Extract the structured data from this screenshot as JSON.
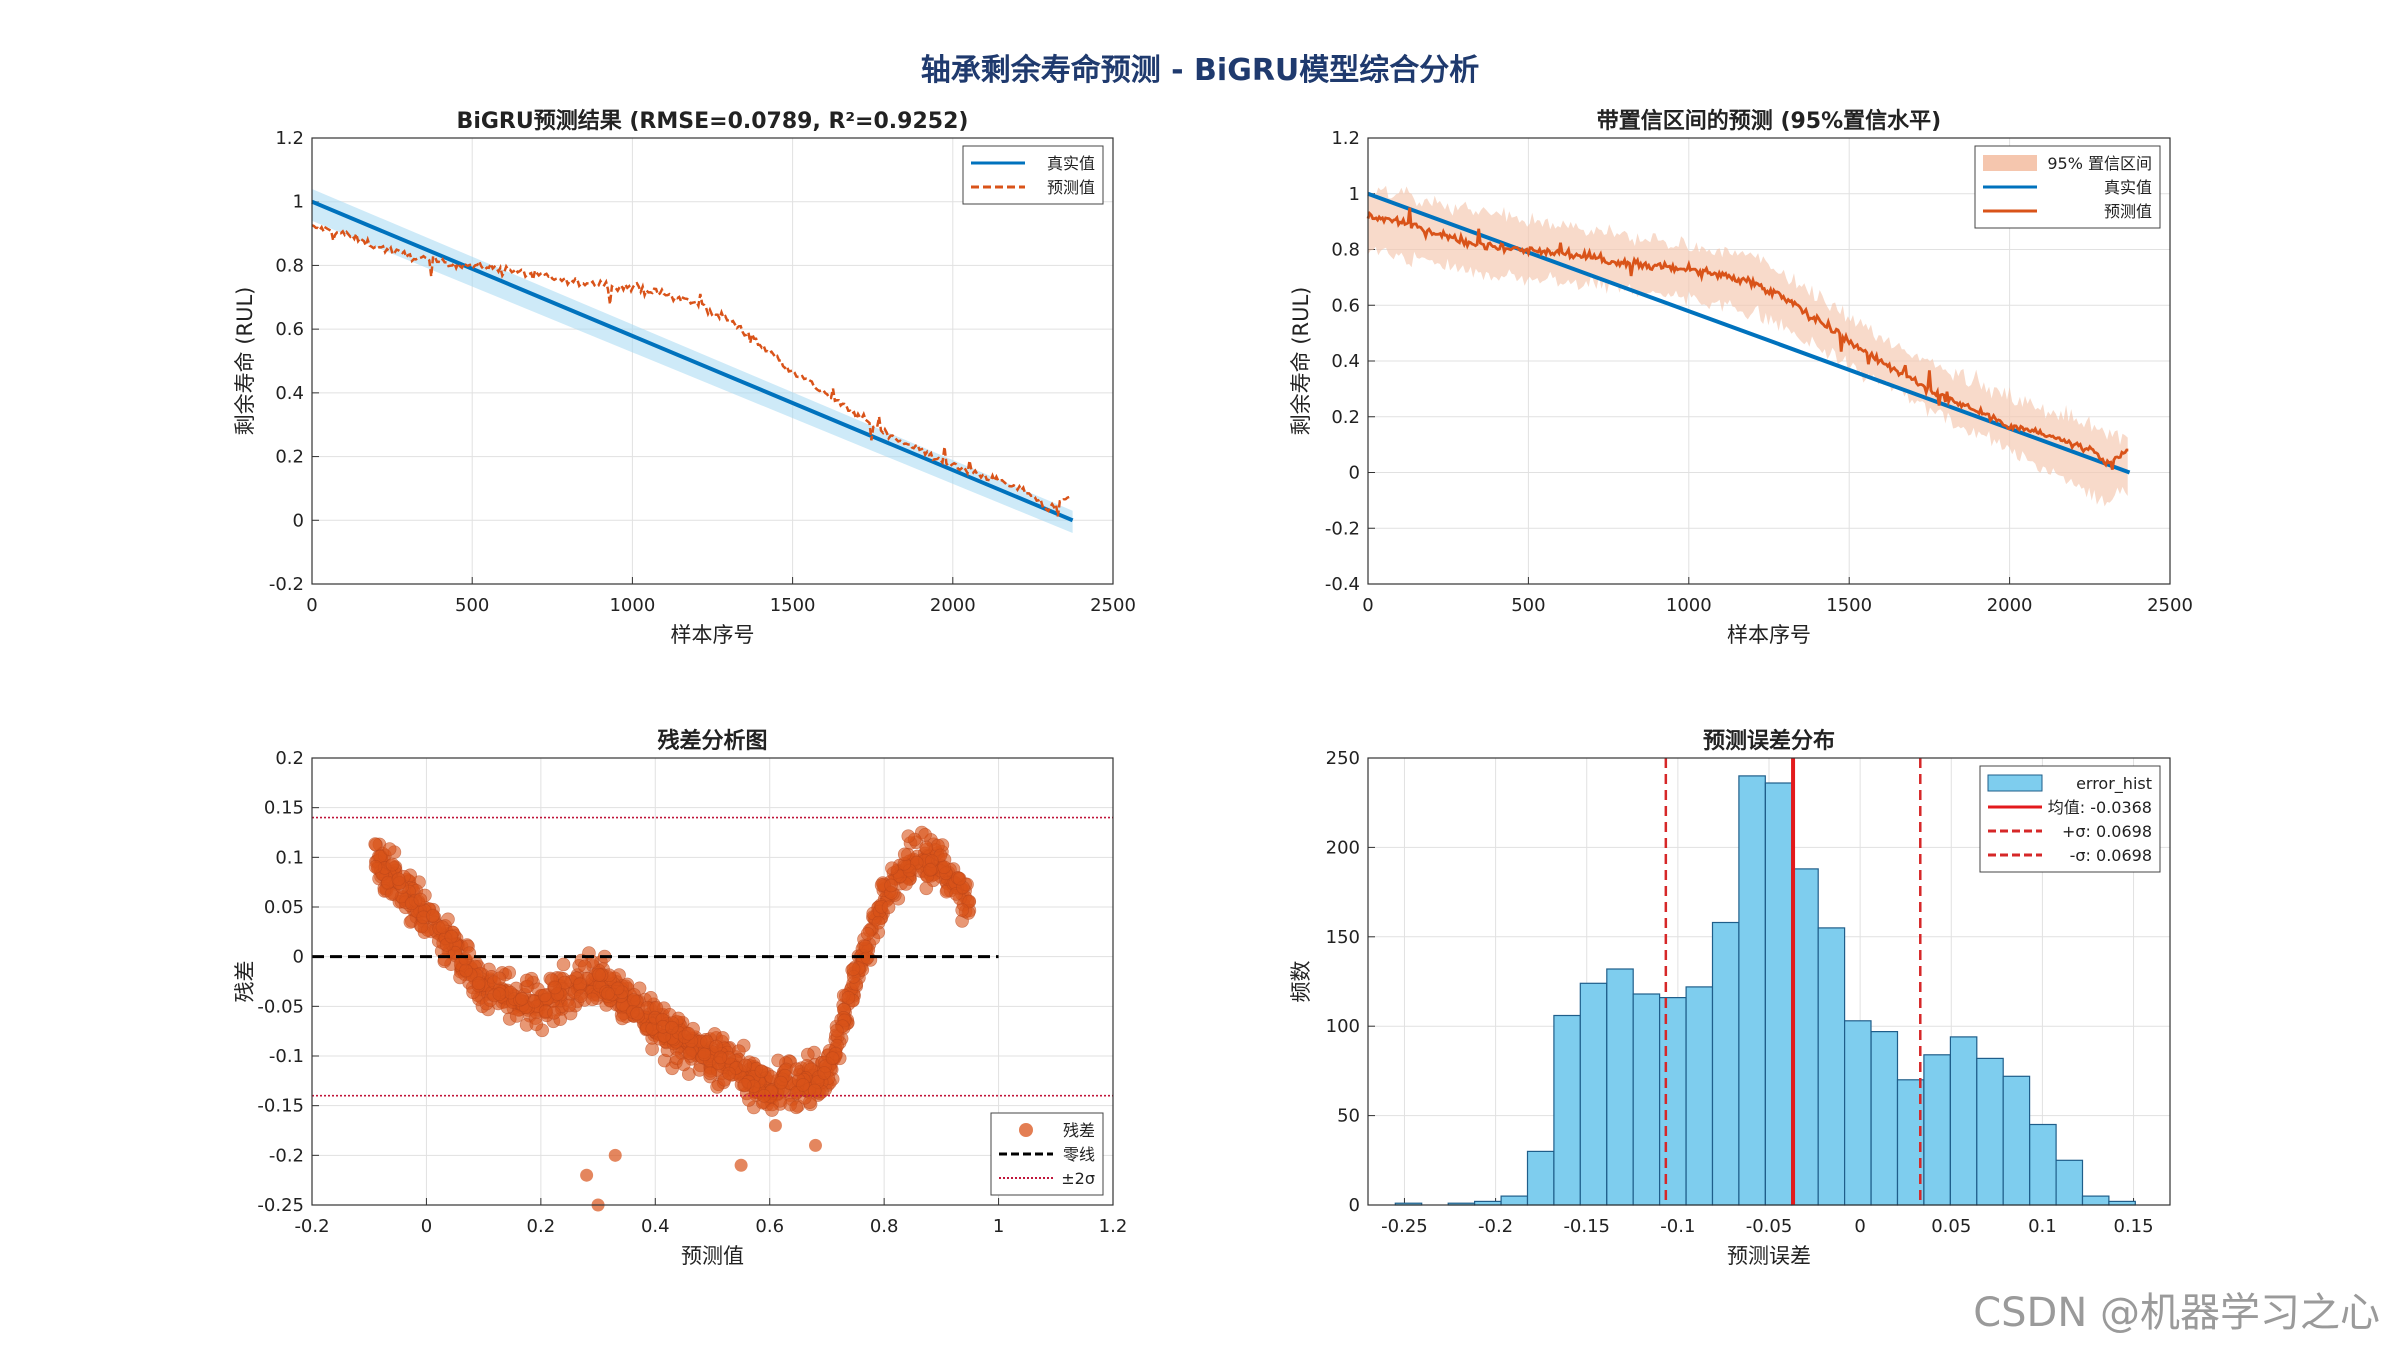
{
  "figure": {
    "title": "轴承剩余寿命预测 - BiGRU模型综合分析",
    "watermark": "CSDN @机器学习之心"
  },
  "colors": {
    "blue": "#0072BD",
    "orange": "#D95319",
    "band_blue": "#A6D8F2",
    "band_orange": "#F5C6AE",
    "hist_fill": "#7ECDEE",
    "hist_edge": "#1F5E8A",
    "mean_line": "#E31A1C",
    "sigma_line": "#D62728",
    "title_color": "#1F3A6E"
  },
  "chart_data": [
    {
      "id": "p1",
      "type": "line",
      "title": "BiGRU预测结果 (RMSE=0.0789, R²=0.9252)",
      "xlabel": "样本序号",
      "ylabel": "剩余寿命 (RUL)",
      "xlim": [
        0,
        2500
      ],
      "ylim": [
        -0.2,
        1.2
      ],
      "xticks": [
        0,
        500,
        1000,
        1500,
        2000,
        2500
      ],
      "yticks": [
        -0.2,
        0,
        0.2,
        0.4,
        0.6,
        0.8,
        1,
        1.2
      ],
      "ytick_labels": [
        "-0.2",
        "0",
        "0.2",
        "0.4",
        "0.6",
        "0.8",
        "1",
        "1.2"
      ],
      "grid": true,
      "legend": "top-right",
      "series": [
        {
          "name": "真实值",
          "style": "solid",
          "x": [
            0,
            2374
          ],
          "y": [
            1.0,
            0.0
          ]
        },
        {
          "name": "预测值",
          "style": "dashed",
          "x": [
            0,
            100,
            200,
            300,
            400,
            500,
            600,
            700,
            800,
            900,
            1000,
            1100,
            1200,
            1300,
            1400,
            1500,
            1600,
            1700,
            1800,
            1900,
            2000,
            2100,
            2200,
            2250,
            2300,
            2374
          ],
          "y": [
            0.92,
            0.9,
            0.86,
            0.83,
            0.81,
            0.8,
            0.79,
            0.77,
            0.75,
            0.74,
            0.73,
            0.71,
            0.68,
            0.63,
            0.55,
            0.47,
            0.4,
            0.33,
            0.27,
            0.22,
            0.17,
            0.14,
            0.1,
            0.08,
            0.03,
            0.08
          ]
        }
      ],
      "band": {
        "x": [
          0,
          2374
        ],
        "lower": [
          0.94,
          -0.04
        ],
        "upper": [
          1.04,
          0.03
        ]
      }
    },
    {
      "id": "p2",
      "type": "line",
      "title": "带置信区间的预测 (95%置信水平)",
      "xlabel": "样本序号",
      "ylabel": "剩余寿命 (RUL)",
      "xlim": [
        0,
        2500
      ],
      "ylim": [
        -0.4,
        1.2
      ],
      "xticks": [
        0,
        500,
        1000,
        1500,
        2000,
        2500
      ],
      "yticks": [
        -0.4,
        -0.2,
        0,
        0.2,
        0.4,
        0.6,
        0.8,
        1,
        1.2
      ],
      "ytick_labels": [
        "-0.4",
        "-0.2",
        "0",
        "0.2",
        "0.4",
        "0.6",
        "0.8",
        "1",
        "1.2"
      ],
      "grid": true,
      "legend": "top-right",
      "series": [
        {
          "name": "真实值",
          "style": "solid",
          "x": [
            0,
            2374
          ],
          "y": [
            1.0,
            0.0
          ]
        },
        {
          "name": "预测值",
          "style": "solid",
          "x": [
            0,
            100,
            200,
            300,
            400,
            500,
            600,
            700,
            800,
            900,
            1000,
            1100,
            1200,
            1300,
            1400,
            1500,
            1600,
            1700,
            1800,
            1900,
            2000,
            2100,
            2200,
            2250,
            2300,
            2374
          ],
          "y": [
            0.92,
            0.9,
            0.86,
            0.83,
            0.81,
            0.8,
            0.79,
            0.77,
            0.75,
            0.74,
            0.73,
            0.71,
            0.68,
            0.63,
            0.55,
            0.47,
            0.4,
            0.33,
            0.27,
            0.22,
            0.17,
            0.14,
            0.1,
            0.08,
            0.03,
            0.08
          ]
        }
      ],
      "band": {
        "name": "95% 置信区间",
        "x": [
          0,
          400,
          800,
          1200,
          1600,
          2000,
          2300,
          2374
        ],
        "lower": [
          0.8,
          0.7,
          0.66,
          0.58,
          0.32,
          0.08,
          -0.1,
          -0.05
        ],
        "upper": [
          1.02,
          0.92,
          0.85,
          0.78,
          0.48,
          0.27,
          0.15,
          0.12
        ]
      }
    },
    {
      "id": "p3",
      "type": "scatter",
      "title": "残差分析图",
      "xlabel": "预测值",
      "ylabel": "残差",
      "xlim": [
        -0.2,
        1.2
      ],
      "ylim": [
        -0.25,
        0.2
      ],
      "xticks": [
        -0.2,
        0,
        0.2,
        0.4,
        0.6,
        0.8,
        1,
        1.2
      ],
      "xtick_labels": [
        "-0.2",
        "0",
        "0.2",
        "0.4",
        "0.6",
        "0.8",
        "1",
        "1.2"
      ],
      "yticks": [
        -0.25,
        -0.2,
        -0.15,
        -0.1,
        -0.05,
        0,
        0.05,
        0.1,
        0.15,
        0.2
      ],
      "ytick_labels": [
        "-0.25",
        "-0.2",
        "-0.15",
        "-0.1",
        "-0.05",
        "0",
        "0.05",
        "0.1",
        "0.15",
        "0.2"
      ],
      "grid": true,
      "legend": "bottom-right",
      "residual_trend": {
        "x": [
          -0.09,
          0.0,
          0.1,
          0.2,
          0.3,
          0.4,
          0.5,
          0.6,
          0.65,
          0.7,
          0.75,
          0.8,
          0.85,
          0.9,
          0.95
        ],
        "y": [
          0.1,
          0.04,
          -0.03,
          -0.05,
          -0.02,
          -0.07,
          -0.1,
          -0.13,
          -0.13,
          -0.12,
          -0.02,
          0.06,
          0.1,
          0.09,
          0.05
        ]
      },
      "outliers": {
        "x": [
          0.28,
          0.3,
          0.33,
          0.61,
          0.68,
          0.55
        ],
        "y": [
          -0.22,
          -0.25,
          -0.2,
          -0.17,
          -0.19,
          -0.21
        ]
      },
      "zero_line": {
        "name": "零线",
        "y": 0,
        "x": [
          -0.2,
          1.0
        ]
      },
      "sigma_lines": {
        "name": "±2σ",
        "values": [
          0.14,
          -0.14
        ]
      },
      "scatter_name": "残差"
    },
    {
      "id": "p4",
      "type": "bar",
      "title": "预测误差分布",
      "xlabel": "预测误差",
      "ylabel": "频数",
      "xlim": [
        -0.27,
        0.17
      ],
      "ylim": [
        0,
        250
      ],
      "xticks": [
        -0.25,
        -0.2,
        -0.15,
        -0.1,
        -0.05,
        0,
        0.05,
        0.1,
        0.15
      ],
      "xtick_labels": [
        "-0.25",
        "-0.2",
        "-0.15",
        "-0.1",
        "-0.05",
        "0",
        "0.05",
        "0.1",
        "0.15"
      ],
      "yticks": [
        0,
        50,
        100,
        150,
        200,
        250
      ],
      "grid": true,
      "legend": "top-right",
      "bin_start": -0.255,
      "bin_width": 0.0145,
      "counts": [
        1,
        0,
        1,
        2,
        5,
        30,
        106,
        124,
        132,
        118,
        116,
        122,
        158,
        240,
        236,
        188,
        155,
        103,
        97,
        70,
        84,
        94,
        82,
        72,
        45,
        25,
        5,
        2
      ],
      "series_name": "error_hist",
      "mean": {
        "value": -0.0368,
        "label": "均值: -0.0368"
      },
      "plus_sigma": {
        "value": 0.033,
        "label": "+σ: 0.0698"
      },
      "minus_sigma": {
        "value": -0.1066,
        "label": "-σ: 0.0698"
      }
    }
  ]
}
